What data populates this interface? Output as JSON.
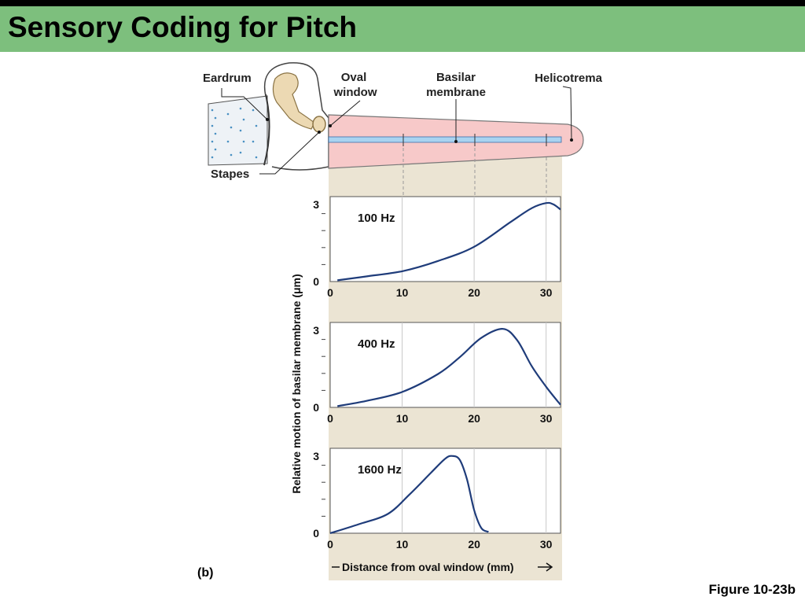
{
  "title": "Sensory Coding for Pitch",
  "figure_label": "Figure 10-23b",
  "panel_label": "(b)",
  "diagram": {
    "labels": {
      "eardrum": "Eardrum",
      "oval_window_1": "Oval",
      "oval_window_2": "window",
      "basilar_1": "Basilar",
      "basilar_2": "membrane",
      "helicotrema": "Helicotrema",
      "stapes": "Stapes"
    }
  },
  "chart_data": [
    {
      "type": "line",
      "series": [
        {
          "name": "100 Hz",
          "x": [
            1,
            5,
            10,
            15,
            20,
            25,
            28,
            30,
            31,
            32
          ],
          "y": [
            0.05,
            0.2,
            0.4,
            0.8,
            1.35,
            2.3,
            2.85,
            3.05,
            3.0,
            2.8
          ]
        }
      ],
      "xlim": [
        0,
        32
      ],
      "ylim": [
        0,
        3.3
      ],
      "yticks": [
        0,
        3
      ],
      "xticks": [
        0,
        10,
        20,
        30
      ]
    },
    {
      "type": "line",
      "series": [
        {
          "name": "400 Hz",
          "x": [
            1,
            5,
            10,
            15,
            18,
            21,
            24,
            26,
            28,
            30,
            32
          ],
          "y": [
            0.05,
            0.25,
            0.6,
            1.3,
            1.95,
            2.7,
            3.05,
            2.6,
            1.6,
            0.8,
            0.1
          ]
        }
      ],
      "xlim": [
        0,
        32
      ],
      "ylim": [
        0,
        3.3
      ],
      "yticks": [
        0,
        3
      ],
      "xticks": [
        0,
        10,
        20,
        30
      ]
    },
    {
      "type": "line",
      "series": [
        {
          "name": "1600 Hz",
          "x": [
            0,
            4,
            8,
            11,
            14,
            16,
            17,
            18,
            19,
            20,
            21,
            22
          ],
          "y": [
            0,
            0.35,
            0.75,
            1.5,
            2.35,
            2.9,
            3.0,
            2.85,
            2.1,
            0.9,
            0.2,
            0.05
          ]
        }
      ],
      "xlim": [
        0,
        32
      ],
      "ylim": [
        0,
        3.3
      ],
      "yticks": [
        0,
        3
      ],
      "xticks": [
        0,
        10,
        20,
        30
      ]
    }
  ],
  "axes": {
    "ylabel": "Relative motion of basilar membrane (μm)",
    "xlabel": "Distance from oval window (mm)"
  },
  "colors": {
    "line": "#1f3c7a",
    "panel_bg": "#ebe4d3",
    "cochlea": "#f7c9c9",
    "membrane": "#a9d3f0",
    "title_band": "#7dbf7d"
  }
}
